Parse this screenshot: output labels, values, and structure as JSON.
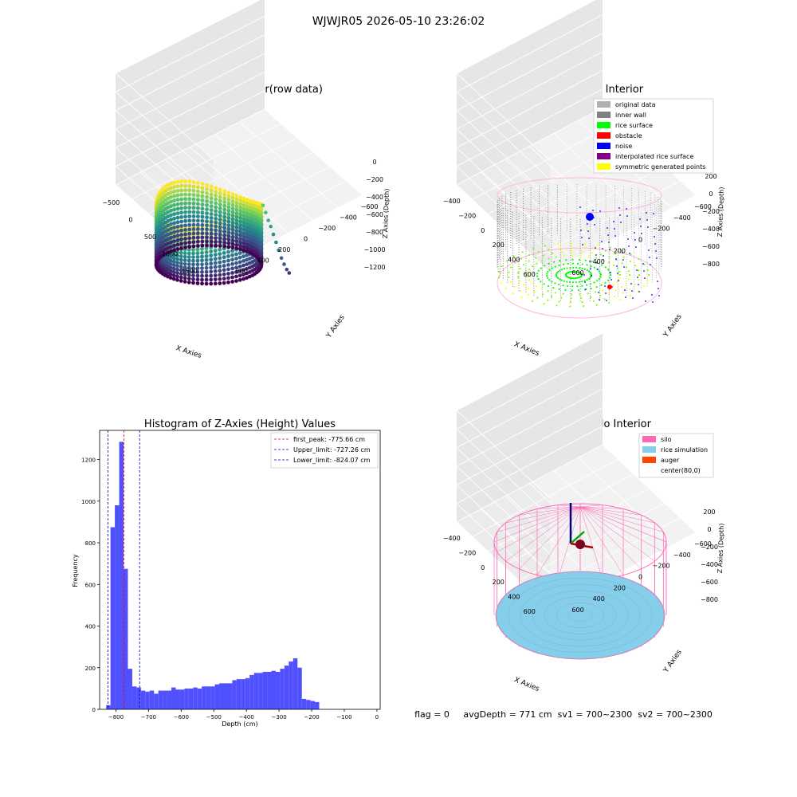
{
  "figure": {
    "suptitle": "WJWJR05 2026-05-10 23:26:02",
    "status_line": "flag = 0     avgDepth = 771 cm  sv1 = 700~2300  sv2 = 700~2300"
  },
  "colors": {
    "hist_bar": "#5050ff",
    "first_peak": "#ff0000",
    "limits": "#0000cc",
    "silo": "#ff69b4",
    "rice": "#87ceeb",
    "auger": "#ff4500",
    "inner_wall": "#808080",
    "rice_surface": "#00ff00",
    "obstacle": "#ff0000",
    "noise": "#0000ff",
    "interp": "#800080",
    "sym": "#ffff00",
    "original": "#b0b0b0"
  },
  "chart_data": [
    {
      "type": "scatter",
      "projection": "3d",
      "title": "3D Plot of Silo Interior(row data)",
      "xlabel": "X Axies",
      "ylabel": "Y Axies",
      "zlabel": "Z Axies (Depth)",
      "x_ticks": [
        "−500",
        "0",
        "500",
        "1000",
        "1500"
      ],
      "y_ticks": [
        "600",
        "400",
        "200",
        "0",
        "−200",
        "−400",
        "−600"
      ],
      "z_ticks": [
        "0",
        "−200",
        "−400",
        "−600",
        "−800",
        "−1000",
        "−1200"
      ],
      "colormap": "viridis",
      "outlier_points_xyz": [
        [
          620,
          -150,
          -480
        ],
        [
          700,
          -180,
          -560
        ],
        [
          780,
          -210,
          -650
        ],
        [
          850,
          -240,
          -720
        ],
        [
          930,
          -270,
          -810
        ],
        [
          1010,
          -300,
          -900
        ],
        [
          1090,
          -330,
          -990
        ],
        [
          1170,
          -360,
          -1080
        ],
        [
          1250,
          -390,
          -1150
        ],
        [
          1330,
          -420,
          -1210
        ],
        [
          1400,
          -450,
          -1250
        ]
      ]
    },
    {
      "type": "scatter",
      "projection": "3d",
      "title": "3D classify of Silo Interior",
      "xlabel": "X Axies",
      "ylabel": "Y Axies",
      "zlabel": "Z Axies (Depth)",
      "x_ticks": [
        "−400",
        "−200",
        "0",
        "200",
        "400",
        "600"
      ],
      "y_ticks": [
        "600",
        "400",
        "200",
        "0",
        "−200",
        "−400",
        "−600"
      ],
      "z_ticks": [
        "200",
        "0",
        "−200",
        "−400",
        "−600",
        "−800"
      ],
      "legend": [
        "original data",
        "inner wall",
        "rice surface",
        "obstacle",
        "noise",
        "interpolated rice surface",
        "symmetric generated points"
      ],
      "legend_loc": "top-right"
    },
    {
      "type": "bar",
      "title": "Histogram of Z-Axies (Height) Values",
      "xlabel": "Depth (cm)",
      "ylabel": "Frequency",
      "xlim": [
        -850,
        10
      ],
      "ylim": [
        0,
        1340
      ],
      "x_ticks": [
        -800,
        -700,
        -600,
        -500,
        -400,
        -300,
        -200,
        -100,
        0
      ],
      "x_tick_labels": [
        "−800",
        "−700",
        "−600",
        "−500",
        "−400",
        "−300",
        "−200",
        "−100",
        "0"
      ],
      "y_ticks": [
        0,
        200,
        400,
        600,
        800,
        1000,
        1200
      ],
      "y_tick_labels": [
        "0",
        "200",
        "400",
        "600",
        "800",
        "1000",
        "1200"
      ],
      "bin_start": -830,
      "bin_width": 13.33,
      "values": [
        20,
        875,
        980,
        1285,
        675,
        195,
        110,
        105,
        90,
        85,
        90,
        75,
        90,
        90,
        90,
        105,
        95,
        95,
        100,
        100,
        105,
        100,
        110,
        110,
        110,
        120,
        125,
        125,
        125,
        140,
        145,
        145,
        150,
        165,
        175,
        175,
        180,
        180,
        185,
        180,
        195,
        210,
        230,
        245,
        200,
        50,
        45,
        40,
        35
      ],
      "lines": [
        {
          "label": "first_peak: -775.66 cm",
          "x": -775.66,
          "color_key": "first_peak"
        },
        {
          "label": "Upper_limit: -727.26 cm",
          "x": -727.26,
          "color_key": "limits"
        },
        {
          "label": "Lower_limit: -824.07 cm",
          "x": -824.07,
          "color_key": "limits"
        }
      ],
      "legend_loc": "top-right"
    },
    {
      "type": "3d-surface",
      "projection": "3d",
      "title": "3D simulation of Silo Interior",
      "xlabel": "X Axies",
      "ylabel": "Y Axies",
      "zlabel": "Z Axies (Depth)",
      "x_ticks": [
        "−400",
        "−200",
        "0",
        "200",
        "400",
        "600"
      ],
      "y_ticks": [
        "600",
        "400",
        "200",
        "0",
        "−200",
        "−400",
        "−600"
      ],
      "z_ticks": [
        "200",
        "0",
        "−200",
        "−400",
        "−600",
        "−800"
      ],
      "legend": [
        "silo",
        "rice simulation",
        "auger",
        "center(80,0)"
      ],
      "legend_loc": "top-right"
    }
  ]
}
